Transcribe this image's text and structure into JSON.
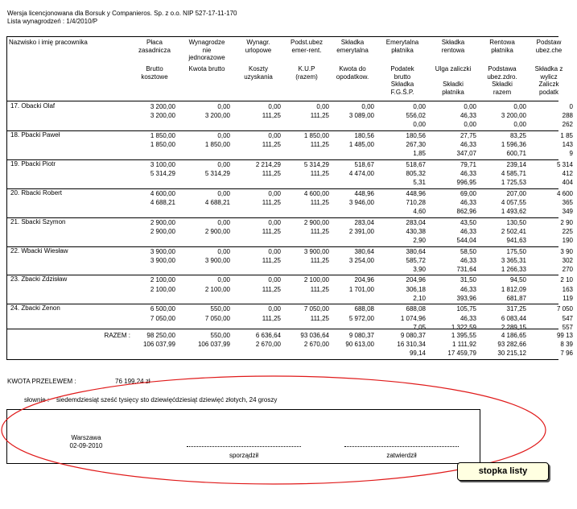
{
  "header": {
    "license": "Wersja licencjonowana dla Borsuk y Companieros. Sp. z o.o. NIP 527-17-11-170",
    "list_no": "Lista wynagrodzeń : 1/4/2010/P"
  },
  "columns": [
    {
      "top": "Nazwisko i imię pracownika",
      "bottom": ""
    },
    {
      "top": "Płaca\nzasadnicza",
      "bottom": "Brutto\nkosztowe"
    },
    {
      "top": "Wynagrodze\nnie\njednorazowe",
      "bottom": "Kwota brutto"
    },
    {
      "top": "Wynagr.\nurlopowe",
      "bottom": "Koszty\nuzyskania"
    },
    {
      "top": "Podst.ubez\nemer-rent.",
      "bottom": "K.U.P\n(razem)"
    },
    {
      "top": "Składka\nemerytalna",
      "bottom": "Kwota do\nopodatkow."
    },
    {
      "top": "Emerytalna\npłatnika",
      "bottom": "Podatek\nbrutto\nSkładka\nF.G.Ś.P."
    },
    {
      "top": "Składka\nrentowa",
      "bottom": "Ulga zaliczki\n\nSkładki\npłatnika"
    },
    {
      "top": "Rentowa\npłatnika",
      "bottom": "Podstawa\nubez.zdro.\nSkładki\nrazem"
    },
    {
      "top": "Podstaw\nubez.che",
      "bottom": "Składka z\nwylicz\nZaliczk\npodatk"
    }
  ],
  "rows": [
    {
      "name": "17. Obacki Olaf",
      "lines": [
        [
          "3 200,00",
          "0,00",
          "0,00",
          "0,00",
          "0,00",
          "0,00",
          "0,00",
          "0,00",
          "0"
        ],
        [
          "3 200,00",
          "3 200,00",
          "111,25",
          "111,25",
          "3 089,00",
          "556,02",
          "46,33",
          "3 200,00",
          "288"
        ],
        [
          "",
          "",
          "",
          "",
          "",
          "0,00",
          "0,00",
          "0,00",
          "262"
        ]
      ]
    },
    {
      "name": "18. Pbacki Paweł",
      "lines": [
        [
          "1 850,00",
          "0,00",
          "0,00",
          "1 850,00",
          "180,56",
          "180,56",
          "27,75",
          "83,25",
          "1 85"
        ],
        [
          "1 850,00",
          "1 850,00",
          "111,25",
          "111,25",
          "1 485,00",
          "267,30",
          "46,33",
          "1 596,36",
          "143"
        ],
        [
          "",
          "",
          "",
          "",
          "",
          "1,85",
          "347,07",
          "600,71",
          "9"
        ]
      ]
    },
    {
      "name": "19. Pbacki Piotr",
      "lines": [
        [
          "3 100,00",
          "0,00",
          "2 214,29",
          "5 314,29",
          "518,67",
          "518,67",
          "79,71",
          "239,14",
          "5 314"
        ],
        [
          "5 314,29",
          "5 314,29",
          "111,25",
          "111,25",
          "4 474,00",
          "805,32",
          "46,33",
          "4 585,71",
          "412"
        ],
        [
          "",
          "",
          "",
          "",
          "",
          "5,31",
          "996,95",
          "1 725,53",
          "404"
        ]
      ]
    },
    {
      "name": "20. Rbacki Robert",
      "lines": [
        [
          "4 600,00",
          "0,00",
          "0,00",
          "4 600,00",
          "448,96",
          "448,96",
          "69,00",
          "207,00",
          "4 600"
        ],
        [
          "4 688,21",
          "4 688,21",
          "111,25",
          "111,25",
          "3 946,00",
          "710,28",
          "46,33",
          "4 057,55",
          "365"
        ],
        [
          "",
          "",
          "",
          "",
          "",
          "4,60",
          "862,96",
          "1 493,62",
          "349"
        ]
      ]
    },
    {
      "name": "21. Sbacki Szymon",
      "lines": [
        [
          "2 900,00",
          "0,00",
          "0,00",
          "2 900,00",
          "283,04",
          "283,04",
          "43,50",
          "130,50",
          "2 90"
        ],
        [
          "2 900,00",
          "2 900,00",
          "111,25",
          "111,25",
          "2 391,00",
          "430,38",
          "46,33",
          "2 502,41",
          "225"
        ],
        [
          "",
          "",
          "",
          "",
          "",
          "2,90",
          "544,04",
          "941,63",
          "190"
        ]
      ]
    },
    {
      "name": "22. Wbacki Wiesław",
      "lines": [
        [
          "3 900,00",
          "0,00",
          "0,00",
          "3 900,00",
          "380,64",
          "380,64",
          "58,50",
          "175,50",
          "3 90"
        ],
        [
          "3 900,00",
          "3 900,00",
          "111,25",
          "111,25",
          "3 254,00",
          "585,72",
          "46,33",
          "3 365,31",
          "302"
        ],
        [
          "",
          "",
          "",
          "",
          "",
          "3,90",
          "731,64",
          "1 266,33",
          "270"
        ]
      ]
    },
    {
      "name": "23. Zbacki Zdzisław",
      "lines": [
        [
          "2 100,00",
          "0,00",
          "0,00",
          "2 100,00",
          "204,96",
          "204,96",
          "31,50",
          "94,50",
          "2 10"
        ],
        [
          "2 100,00",
          "2 100,00",
          "111,25",
          "111,25",
          "1 701,00",
          "306,18",
          "46,33",
          "1 812,09",
          "163"
        ],
        [
          "",
          "",
          "",
          "",
          "",
          "2,10",
          "393,96",
          "681,87",
          "119"
        ]
      ]
    },
    {
      "name": "24. Zbacki Zenon",
      "lines": [
        [
          "6 500,00",
          "550,00",
          "0,00",
          "7 050,00",
          "688,08",
          "688,08",
          "105,75",
          "317,25",
          "7 050"
        ],
        [
          "7 050,00",
          "7 050,00",
          "111,25",
          "111,25",
          "5 972,00",
          "1 074,96",
          "46,33",
          "6 083,44",
          "547"
        ],
        [
          "",
          "",
          "",
          "",
          "",
          "7,05",
          "1 322,59",
          "2 289,15",
          "557"
        ]
      ]
    }
  ],
  "totals": {
    "label": "RAZEM :",
    "lines": [
      [
        "98 250,00",
        "550,00",
        "6 636,64",
        "93 036,64",
        "9 080,37",
        "9 080,37",
        "1 395,55",
        "4 186,65",
        "99 13"
      ],
      [
        "106 037,99",
        "106 037,99",
        "2 670,00",
        "2 670,00",
        "90 613,00",
        "16 310,34",
        "1 111,92",
        "93 282,66",
        "8 39"
      ],
      [
        "",
        "",
        "",
        "",
        "",
        "99,14",
        "17 459,79",
        "30 215,12",
        "7 96"
      ]
    ]
  },
  "transfer": {
    "label": "KWOTA PRZELEWEM :",
    "amount": "76 199,24 zł",
    "words_label": "słownie :",
    "words": "siedemdziesiąt sześć tysięcy sto dziewięćdziesiąt dziewięć złotych, 24 groszy"
  },
  "footer": {
    "city": "Warszawa",
    "date": "02-09-2010",
    "prepared": "sporządził",
    "approved": "zatwierdził"
  },
  "callout": {
    "label": "stopka listy",
    "color": "#e01a1a"
  }
}
